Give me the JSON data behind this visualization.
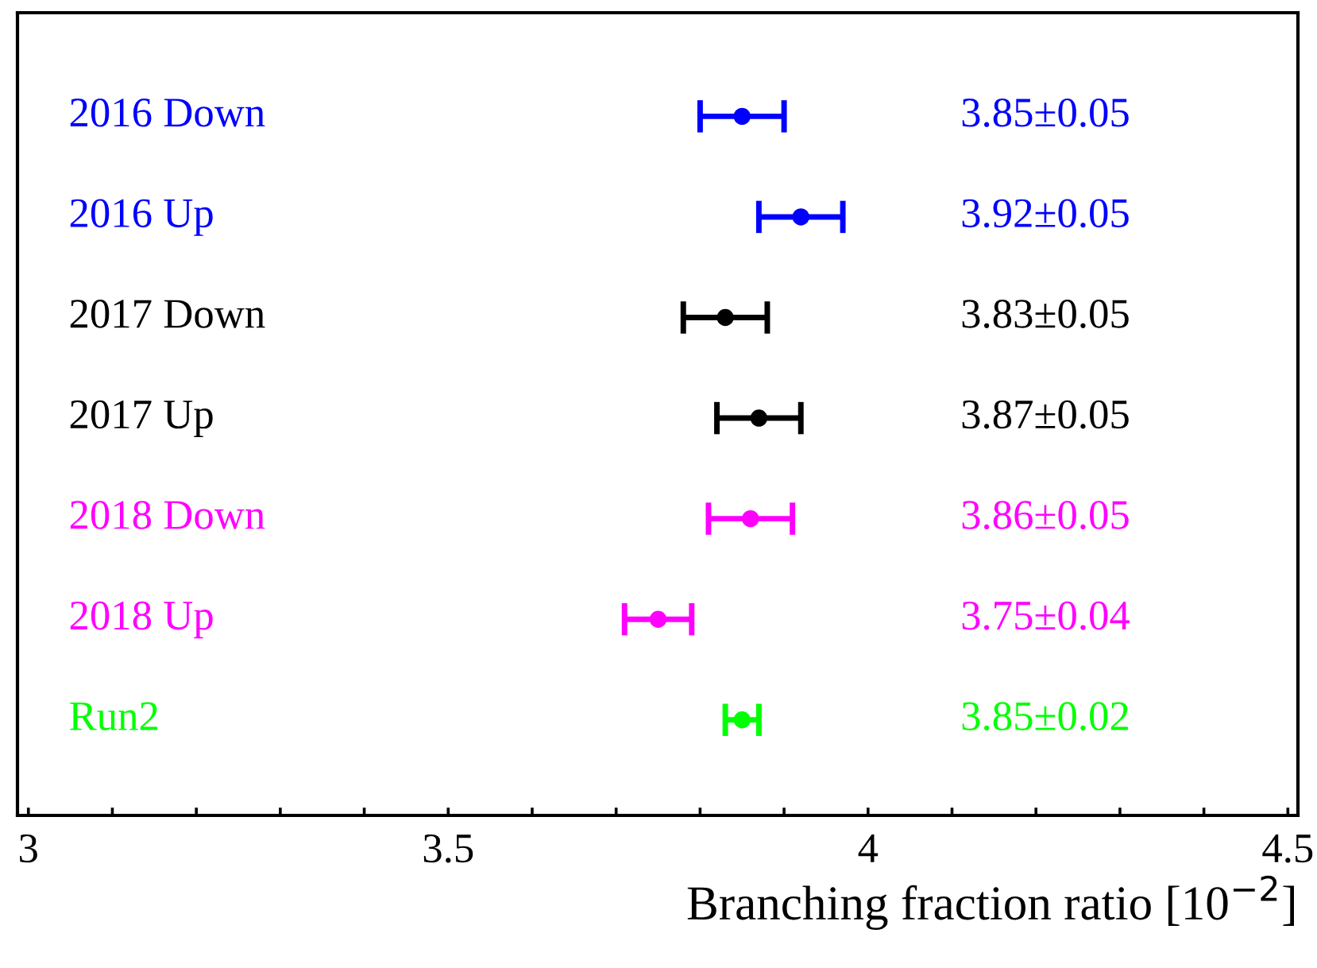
{
  "chart_data": {
    "type": "scatter",
    "orientation": "horizontal",
    "xlabel": "Branching fraction ratio [10$^{−2}$]",
    "categories": [
      "2016 Down",
      "2016 Up",
      "2017 Down",
      "2017 Up",
      "2018 Down",
      "2018 Up",
      "Run2"
    ],
    "values": [
      3.85,
      3.92,
      3.83,
      3.87,
      3.86,
      3.75,
      3.85
    ],
    "errors": [
      0.05,
      0.05,
      0.05,
      0.05,
      0.05,
      0.04,
      0.02
    ],
    "annotations": [
      "3.85±0.05",
      "3.92±0.05",
      "3.83±0.05",
      "3.87±0.05",
      "3.86±0.05",
      "3.75±0.04",
      "3.85±0.02"
    ],
    "colors": [
      "#0000ff",
      "#0000ff",
      "#000000",
      "#000000",
      "#ff00ff",
      "#ff00ff",
      "#00ff00"
    ],
    "marker": "circle",
    "xlim": [
      2.987,
      4.512
    ],
    "xticks": [
      3,
      {
        "value": 3.1,
        "label": null
      },
      {
        "value": 3.2,
        "label": null
      },
      {
        "value": 3.3,
        "label": null
      },
      {
        "value": 3.4,
        "label": null
      },
      3.5,
      {
        "value": 3.6,
        "label": null
      },
      {
        "value": 3.7,
        "label": null
      },
      {
        "value": 3.8,
        "label": null
      },
      {
        "value": 3.9,
        "label": null
      },
      4,
      {
        "value": 4.1,
        "label": null
      },
      {
        "value": 4.2,
        "label": null
      },
      {
        "value": 4.3,
        "label": null
      },
      {
        "value": 4.4,
        "label": null
      },
      4.5
    ],
    "tick_labels": "x"
  }
}
